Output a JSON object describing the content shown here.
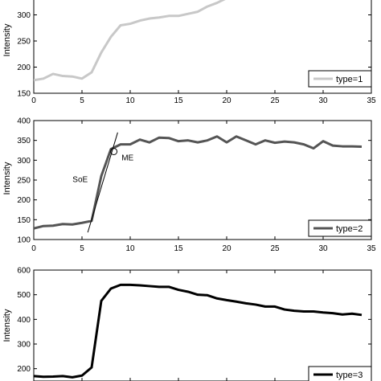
{
  "chart_data": [
    {
      "type": "line",
      "ylabel": "Intensity",
      "xlim": [
        0,
        35
      ],
      "ylim": [
        150,
        350
      ],
      "x_ticks": [
        "0",
        "5",
        "10",
        "15",
        "20",
        "25",
        "30",
        "35"
      ],
      "y_ticks": [
        "150",
        "200",
        "250",
        "300"
      ],
      "series": [
        {
          "name": "type=1",
          "color": "#c8c8c8",
          "x": [
            0,
            1,
            2,
            3,
            4,
            5,
            6,
            7,
            8,
            9,
            10,
            11,
            12,
            13,
            14,
            15,
            16,
            17,
            18,
            19,
            20,
            21,
            22,
            23,
            24,
            25
          ],
          "y": [
            175,
            178,
            187,
            183,
            182,
            178,
            190,
            228,
            258,
            280,
            283,
            289,
            293,
            295,
            298,
            298,
            302,
            306,
            316,
            323,
            332,
            333,
            335,
            337,
            340,
            345
          ]
        }
      ]
    },
    {
      "type": "line",
      "ylabel": "Intensity",
      "xlim": [
        0,
        35
      ],
      "ylim": [
        100,
        400
      ],
      "x_ticks": [
        "0",
        "5",
        "10",
        "15",
        "20",
        "25",
        "30",
        "35"
      ],
      "y_ticks": [
        "100",
        "150",
        "200",
        "250",
        "300",
        "350",
        "400"
      ],
      "annotations": [
        {
          "text": "SoE",
          "x": 5.6,
          "y": 245
        },
        {
          "text": "ME",
          "x": 9.1,
          "y": 300
        }
      ],
      "series": [
        {
          "name": "type=2",
          "color": "#555555",
          "x": [
            0,
            1,
            2,
            3,
            4,
            5,
            6,
            7,
            8,
            9,
            10,
            11,
            12,
            13,
            14,
            15,
            16,
            17,
            18,
            19,
            20,
            21,
            22,
            23,
            24,
            25,
            26,
            27,
            28,
            29,
            30,
            31,
            32,
            33,
            34
          ],
          "y": [
            128,
            134,
            135,
            139,
            138,
            142,
            147,
            260,
            328,
            340,
            340,
            352,
            345,
            357,
            356,
            348,
            350,
            345,
            350,
            360,
            345,
            360,
            350,
            340,
            350,
            344,
            347,
            345,
            340,
            330,
            348,
            337,
            335,
            335,
            334
          ]
        }
      ]
    },
    {
      "type": "line",
      "ylabel": "Intensity",
      "xlim": [
        0,
        35
      ],
      "ylim": [
        150,
        600
      ],
      "x_ticks": [],
      "y_ticks": [
        "200",
        "300",
        "400",
        "500",
        "600"
      ],
      "series": [
        {
          "name": "type=3",
          "color": "#000000",
          "x": [
            0,
            1,
            2,
            3,
            4,
            5,
            6,
            7,
            8,
            9,
            10,
            11,
            12,
            13,
            14,
            15,
            16,
            17,
            18,
            19,
            20,
            21,
            22,
            23,
            24,
            25,
            26,
            27,
            28,
            29,
            30,
            31,
            32,
            33,
            34
          ],
          "y": [
            170,
            167,
            168,
            170,
            165,
            172,
            205,
            475,
            525,
            540,
            540,
            538,
            535,
            532,
            532,
            520,
            512,
            500,
            498,
            485,
            478,
            472,
            465,
            460,
            452,
            452,
            440,
            435,
            432,
            432,
            428,
            425,
            420,
            423,
            418
          ]
        }
      ]
    }
  ]
}
